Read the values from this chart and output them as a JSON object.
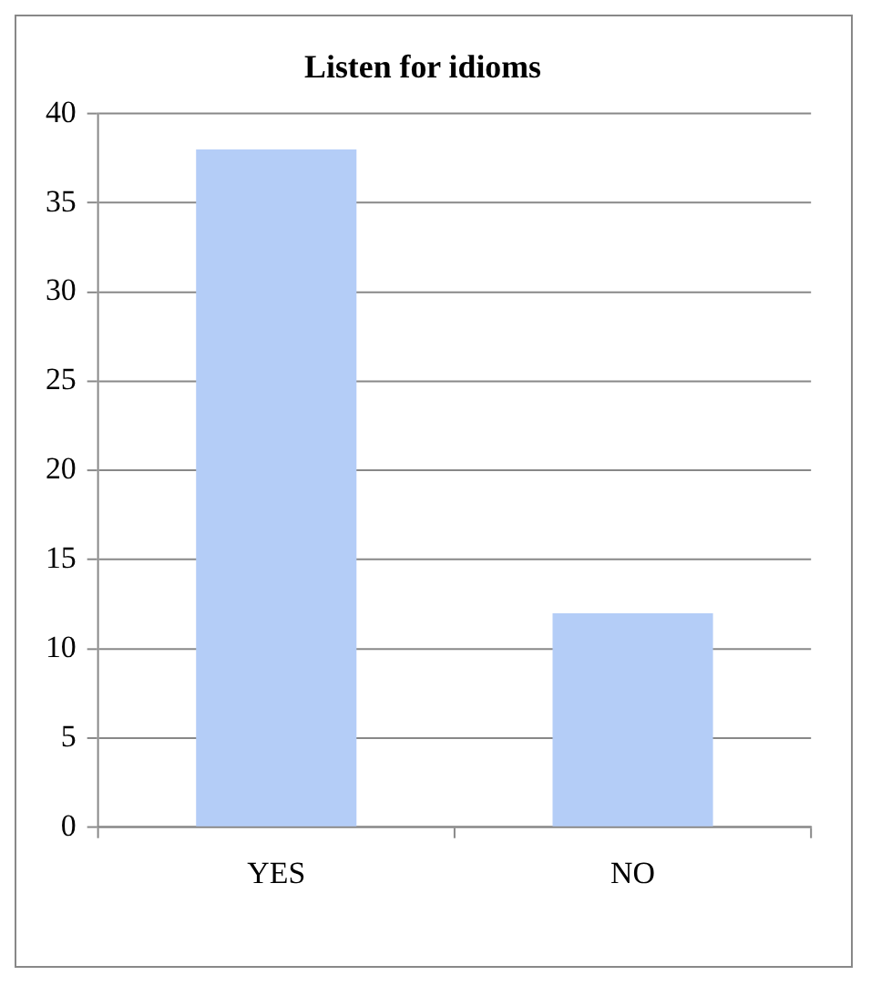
{
  "chart_data": {
    "type": "bar",
    "title": "Listen for idioms",
    "categories": [
      "YES",
      "NO"
    ],
    "values": [
      38,
      12
    ],
    "color": "#b4cdf7",
    "ylim": [
      0,
      40
    ],
    "yticks": [
      0,
      5,
      10,
      15,
      20,
      25,
      30,
      35,
      40
    ],
    "grid": "y",
    "legend": false
  }
}
